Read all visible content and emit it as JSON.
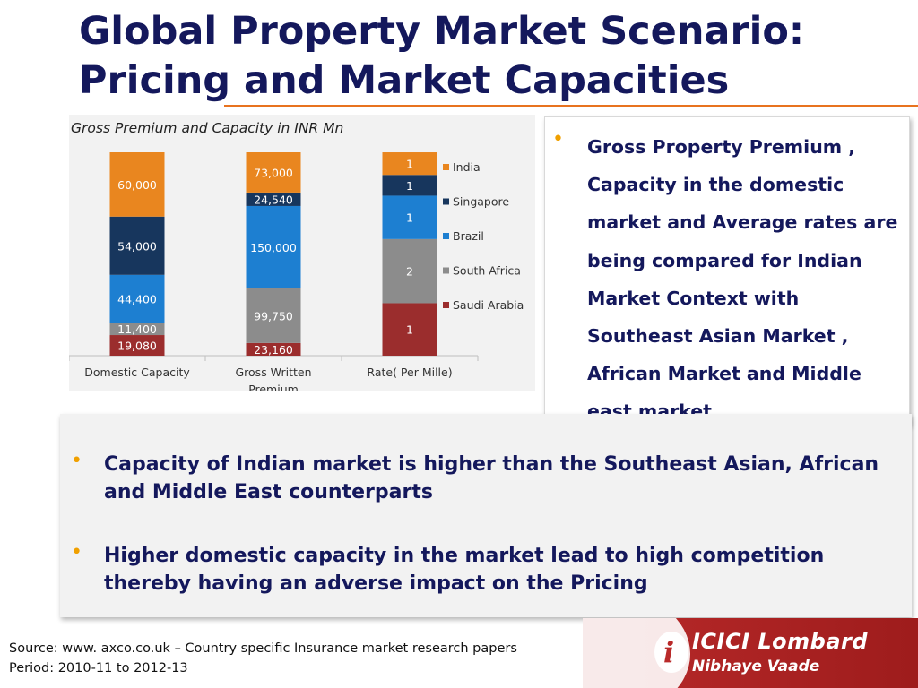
{
  "title": {
    "line1": "Global Property Market Scenario:",
    "line2": "Pricing and Market Capacities"
  },
  "chart_heading": "Gross Premium and Capacity in INR Mn",
  "chart_data": {
    "type": "bar",
    "stacked": true,
    "categories": [
      "Domestic Capacity",
      "Gross Written Premium",
      "Rate( Per Mille)"
    ],
    "series": [
      {
        "name": "Saudi Arabia",
        "color": "#9b2d2d",
        "labels": [
          "19,080",
          "23,160",
          "1"
        ]
      },
      {
        "name": "South Africa",
        "color": "#8c8c8c",
        "labels": [
          "11,400",
          "99,750",
          "2"
        ]
      },
      {
        "name": "Brazil",
        "color": "#1d7fd1",
        "labels": [
          "44,400",
          "150,000",
          "1"
        ]
      },
      {
        "name": "Singapore",
        "color": "#17365d",
        "labels": [
          "54,000",
          "24,540",
          "1"
        ]
      },
      {
        "name": "India",
        "color": "#e9861f",
        "labels": [
          "60,000",
          "73,000",
          "1"
        ]
      }
    ],
    "segment_share": [
      [
        0.1012,
        0.0605,
        0.2356,
        0.2866,
        0.3161
      ],
      [
        0.0624,
        0.269,
        0.4045,
        0.0662,
        0.1979
      ],
      [
        0.2578,
        0.3155,
        0.2133,
        0.1022,
        0.1111
      ]
    ],
    "legend": "right",
    "grid": false
  },
  "right_box": {
    "text": "Gross Property Premium , Capacity in the domestic market and Average rates are being compared for Indian Market Context with Southeast Asian Market , African Market and Middle east market"
  },
  "bottom_box": {
    "points": [
      "Capacity of Indian market is higher than the Southeast Asian, African and Middle East counterparts",
      "Higher domestic capacity in the market lead to high competition thereby having an adverse impact on the Pricing"
    ]
  },
  "source": {
    "line1": "Source: www. axco.co.uk – Country specific Insurance market research papers",
    "line2": "Period: 2010-11 to 2012-13"
  },
  "logo": {
    "name": "ICICI Lombard",
    "tagline": "Nibhaye Vaade"
  },
  "colors": {
    "title": "#14185c",
    "accent_orange": "#e8731f",
    "bullet": "#f0a000",
    "logo_red": "#b92a2a"
  }
}
